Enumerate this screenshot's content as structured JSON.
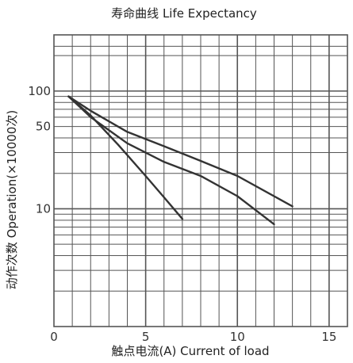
{
  "chart_data": {
    "type": "line",
    "title": "寿命曲线 Life Expectancy",
    "xlabel": "触点电流(A) Current of load",
    "ylabel": "动作次数 Operation(×10000次)",
    "x_ticks": [
      "0",
      "5",
      "10",
      "15"
    ],
    "y_ticks": [
      "100",
      "50",
      "10"
    ],
    "xlim": [
      0,
      16
    ],
    "y_scale": "log",
    "ylim": [
      1,
      300
    ],
    "grid": true,
    "series": [
      {
        "x": [
          0.8,
          2.0,
          3.5,
          5.0,
          6.0,
          7.0
        ],
        "y": [
          90,
          62,
          35,
          19,
          12.5,
          8.2
        ]
      },
      {
        "x": [
          0.8,
          2.0,
          4.0,
          6.0,
          8.0,
          10.0,
          12.0
        ],
        "y": [
          90,
          60,
          36,
          25,
          19,
          12.8,
          7.4
        ]
      },
      {
        "x": [
          0.8,
          2.0,
          4.0,
          6.0,
          8.0,
          10.0,
          13.0
        ],
        "y": [
          90,
          68,
          45,
          34,
          25.5,
          19,
          10.5
        ]
      }
    ],
    "colors": {
      "grid": "#555555",
      "curve": "#333333",
      "text": "#222222"
    }
  }
}
